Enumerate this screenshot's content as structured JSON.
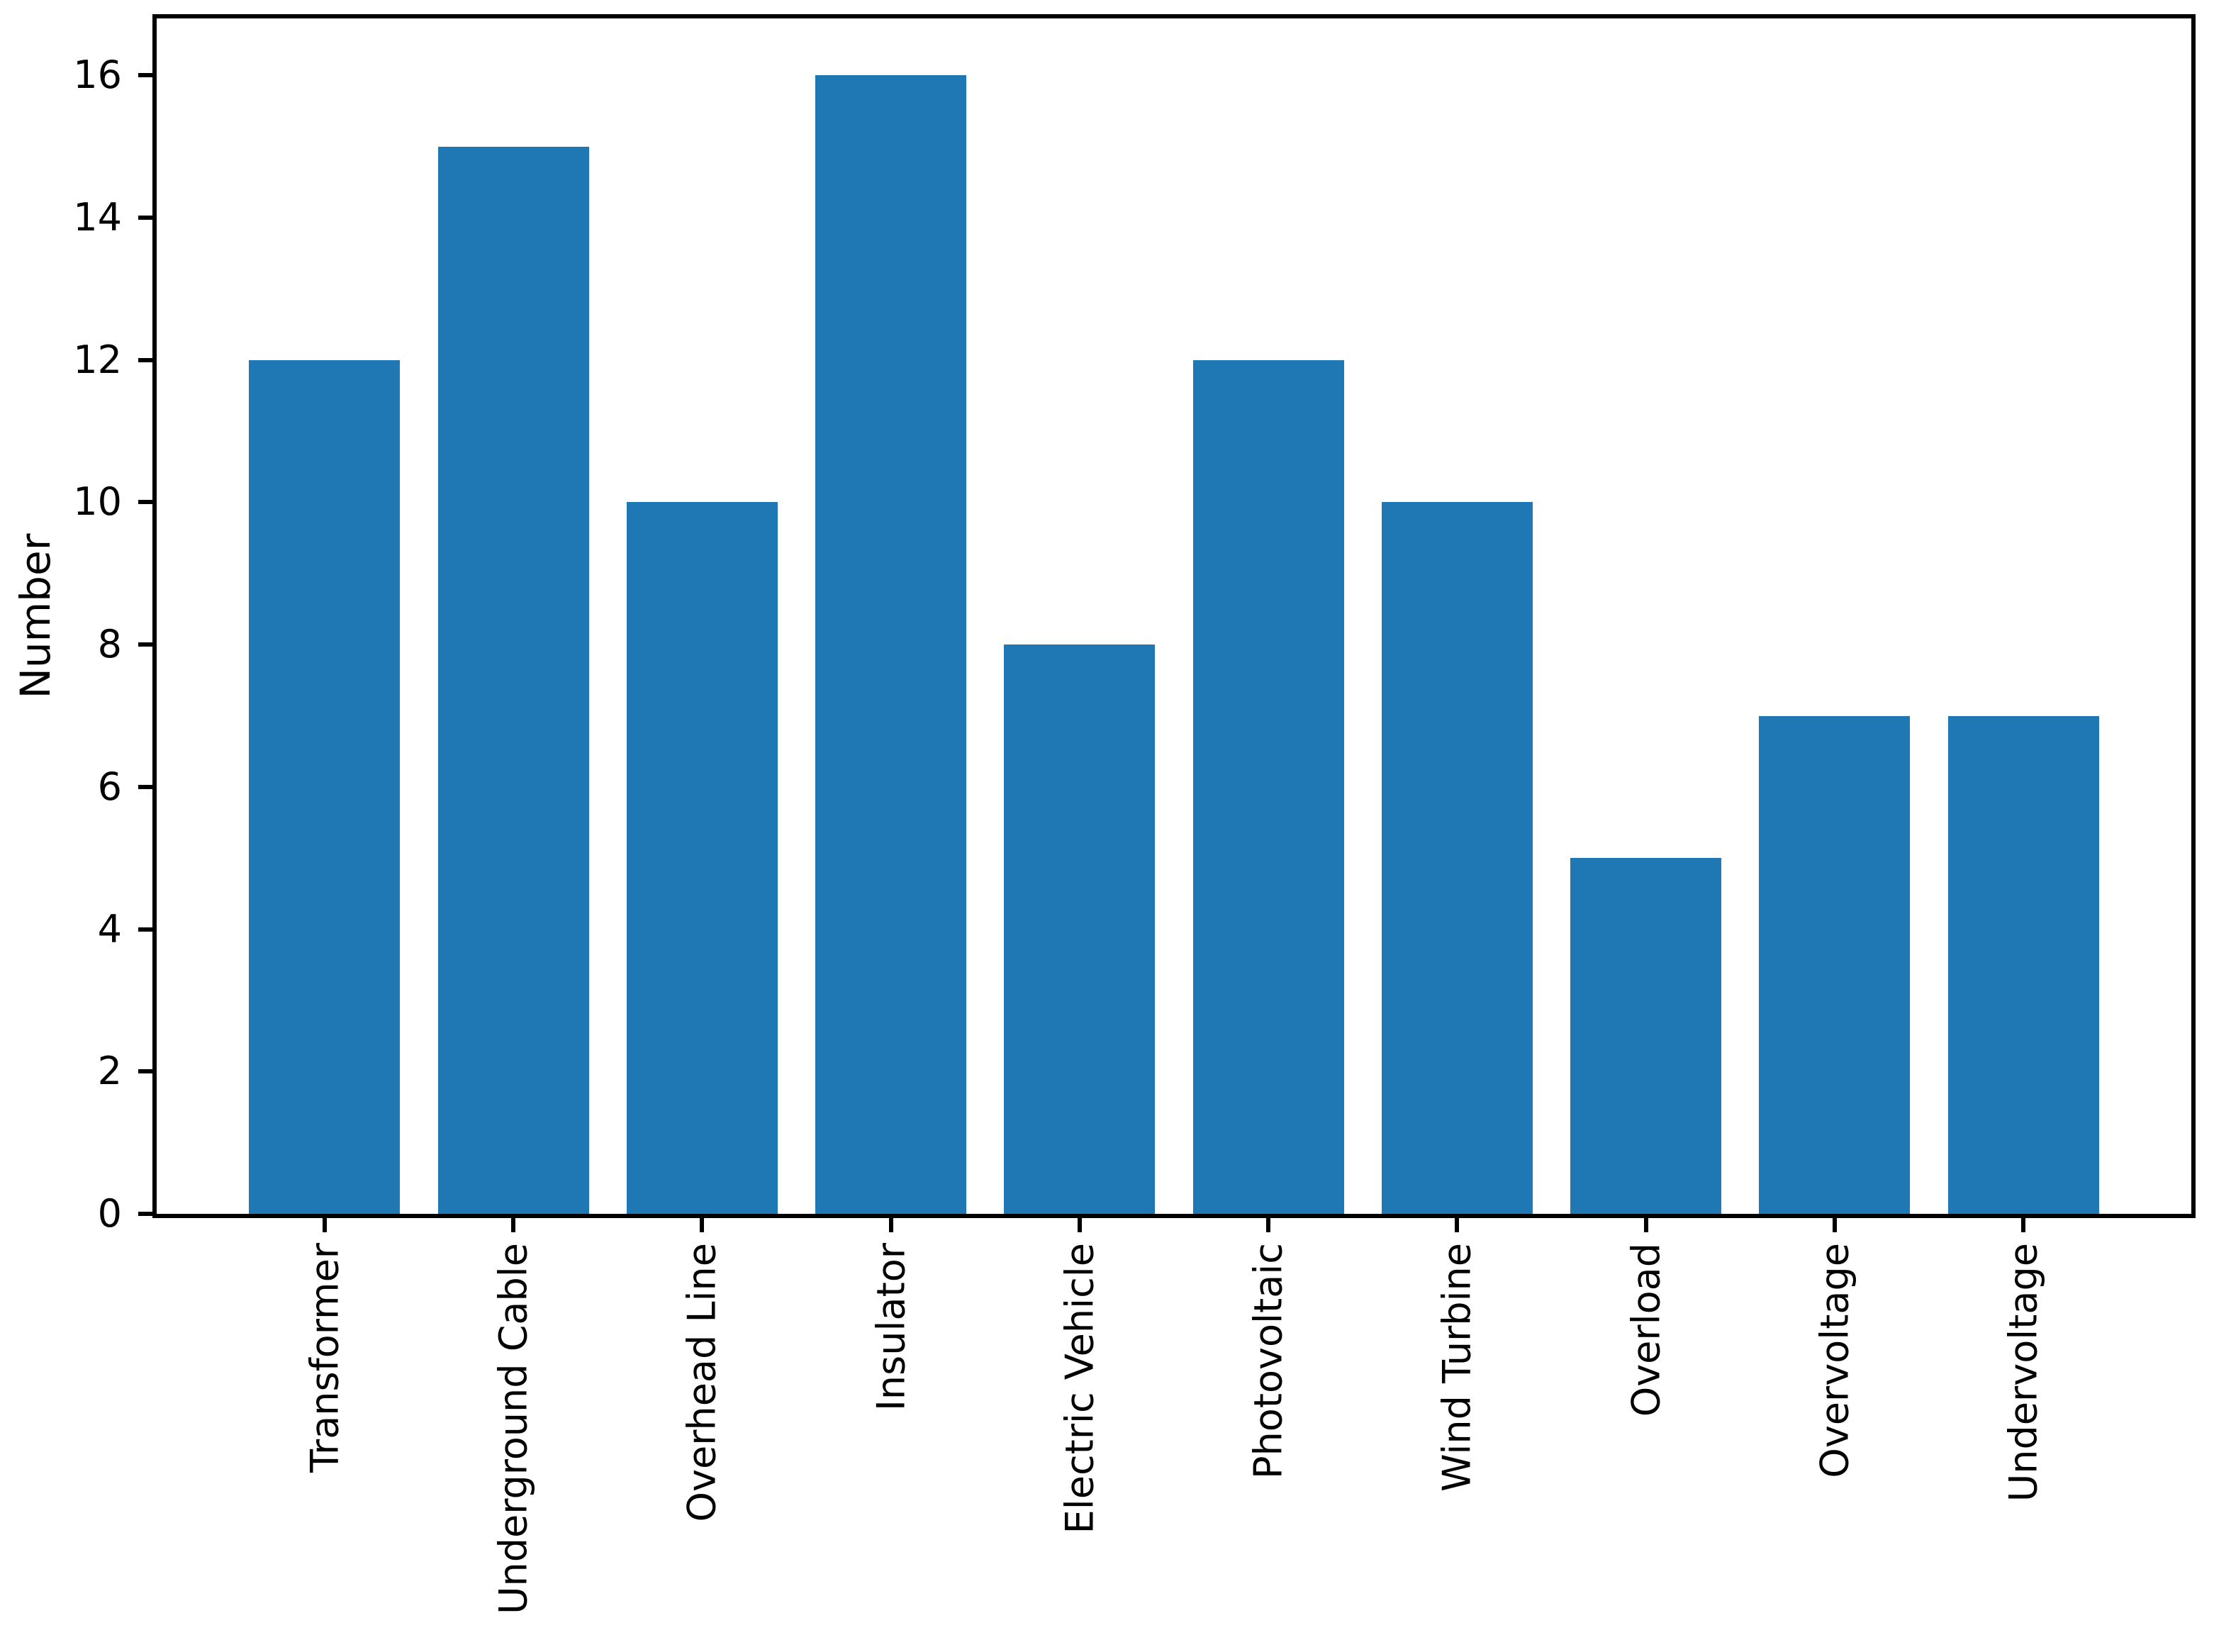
{
  "figure": {
    "background": "#ffffff",
    "bar_color": "#1f77b4",
    "axis_color": "#000000",
    "text_color": "#000000"
  },
  "chart_data": {
    "type": "bar",
    "ylabel": "Number",
    "categories": [
      "Transformer",
      "Underground Cable",
      "Overhead Line",
      "Insulator",
      "Electric Vehicle",
      "Photovoltaic",
      "Wind Turbine",
      "Overload",
      "Overvoltage",
      "Undervoltage"
    ],
    "values": [
      12,
      15,
      10,
      16,
      8,
      12,
      10,
      5,
      7,
      7
    ],
    "yticks": [
      0,
      2,
      4,
      6,
      8,
      10,
      12,
      14,
      16
    ],
    "ylim": [
      0,
      16.8
    ],
    "xlim": [
      -0.89,
      9.89
    ],
    "bar_width": 0.8,
    "x_tick_rotation": 90,
    "grid": false,
    "legend_position": "none"
  }
}
